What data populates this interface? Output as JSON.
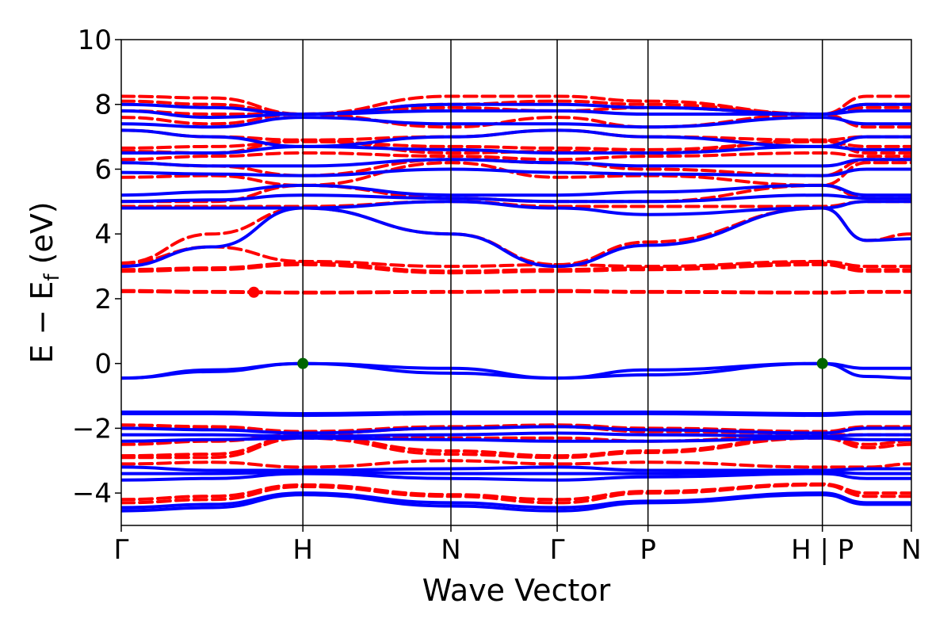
{
  "chart_data": {
    "type": "line",
    "title": "",
    "xlabel": "Wave Vector",
    "ylabel": [
      "E",
      " − E",
      "f",
      " (eV)"
    ],
    "ylim": [
      -5,
      10
    ],
    "yticks": [
      -4,
      -2,
      0,
      2,
      4,
      6,
      8,
      10
    ],
    "ytick_labels": [
      "−4",
      "−2",
      "0",
      "2",
      "4",
      "6",
      "8",
      "10"
    ],
    "x_kpath": [
      0,
      2.0,
      3.63,
      4.8,
      5.8,
      7.72,
      8.7
    ],
    "x_kpoint_labels": [
      "Γ",
      "H",
      "N",
      "Γ",
      "P",
      "H | P",
      "N"
    ],
    "path_breaks": [
      7.72
    ],
    "grid": false,
    "legend": "none",
    "series_styles": [
      {
        "key": "spin_up",
        "color": "#0000ff",
        "dash": "solid"
      },
      {
        "key": "spin_down",
        "color": "#ff0000",
        "dash": "dashed"
      }
    ],
    "bands": {
      "spin_down": [
        [
          -4.3,
          -4.2,
          -3.8,
          -4.1,
          -4.3,
          -4.0,
          -3.75,
          -4.1,
          -4.1
        ],
        [
          -4.2,
          -4.1,
          -3.75,
          -4.05,
          -4.2,
          -3.95,
          -3.72,
          -4.0,
          -4.0
        ],
        [
          -3.1,
          -3.05,
          -3.2,
          -3.0,
          -3.1,
          -3.05,
          -3.2,
          -3.2,
          -3.1
        ],
        [
          -2.9,
          -2.9,
          -2.3,
          -2.8,
          -2.9,
          -2.75,
          -2.3,
          -2.6,
          -2.5
        ],
        [
          -2.85,
          -2.8,
          -2.25,
          -2.7,
          -2.85,
          -2.7,
          -2.25,
          -2.5,
          -2.4
        ],
        [
          -2.5,
          -2.4,
          -2.2,
          -2.3,
          -2.3,
          -2.4,
          -2.2,
          -2.2,
          -2.2
        ],
        [
          -2.0,
          -2.0,
          -2.15,
          -2.0,
          -1.95,
          -2.1,
          -2.15,
          -2.0,
          -2.0
        ],
        [
          -1.9,
          -1.95,
          -2.1,
          -1.95,
          -1.9,
          -2.0,
          -2.1,
          -1.95,
          -1.95
        ],
        [
          2.22,
          2.2,
          2.18,
          2.2,
          2.22,
          2.2,
          2.18,
          2.2,
          2.2
        ],
        [
          2.25,
          2.22,
          2.2,
          2.22,
          2.25,
          2.22,
          2.2,
          2.22,
          2.22
        ],
        [
          2.85,
          2.9,
          3.05,
          2.8,
          2.85,
          2.9,
          3.05,
          2.85,
          2.85
        ],
        [
          2.9,
          2.95,
          3.1,
          2.85,
          2.9,
          2.95,
          3.1,
          2.9,
          2.9
        ],
        [
          3.1,
          3.6,
          3.15,
          3.0,
          3.05,
          3.0,
          3.15,
          3.0,
          3.0
        ],
        [
          3.1,
          4.0,
          4.8,
          4.0,
          3.05,
          3.75,
          4.8,
          3.8,
          4.0
        ],
        [
          4.85,
          4.85,
          4.85,
          5.0,
          4.85,
          4.85,
          4.85,
          5.0,
          5.0
        ],
        [
          5.0,
          5.0,
          5.5,
          5.1,
          5.0,
          5.0,
          5.5,
          5.1,
          5.1
        ],
        [
          5.75,
          5.8,
          5.5,
          6.2,
          5.75,
          5.8,
          5.5,
          6.2,
          6.2
        ],
        [
          6.2,
          6.1,
          5.8,
          6.3,
          6.2,
          6.0,
          5.8,
          6.3,
          6.3
        ],
        [
          6.3,
          6.4,
          6.5,
          6.4,
          6.3,
          6.4,
          6.5,
          6.4,
          6.4
        ],
        [
          6.55,
          6.5,
          6.9,
          6.5,
          6.55,
          6.5,
          6.9,
          6.5,
          6.5
        ],
        [
          6.65,
          6.7,
          6.85,
          6.7,
          6.65,
          6.6,
          6.85,
          6.7,
          6.7
        ],
        [
          7.2,
          7.0,
          6.9,
          7.0,
          7.2,
          7.0,
          6.9,
          7.0,
          7.0
        ],
        [
          7.6,
          7.4,
          7.7,
          7.3,
          7.6,
          7.3,
          7.7,
          7.3,
          7.3
        ],
        [
          7.8,
          7.7,
          7.7,
          7.9,
          7.8,
          7.9,
          7.7,
          7.9,
          7.9
        ],
        [
          8.1,
          8.0,
          7.7,
          8.0,
          8.1,
          8.0,
          7.7,
          8.0,
          8.0
        ],
        [
          8.25,
          8.2,
          7.7,
          8.25,
          8.25,
          8.1,
          7.7,
          8.25,
          8.25
        ]
      ],
      "spin_up": [
        [
          -4.55,
          -4.45,
          -4.05,
          -4.4,
          -4.55,
          -4.3,
          -4.05,
          -4.35,
          -4.35
        ],
        [
          -4.45,
          -4.35,
          -4.0,
          -4.3,
          -4.45,
          -4.25,
          -4.0,
          -4.3,
          -4.3
        ],
        [
          -3.6,
          -3.55,
          -3.4,
          -3.55,
          -3.6,
          -3.5,
          -3.4,
          -3.55,
          -3.55
        ],
        [
          -3.4,
          -3.4,
          -3.35,
          -3.4,
          -3.4,
          -3.4,
          -3.35,
          -3.4,
          -3.4
        ],
        [
          -3.2,
          -3.3,
          -3.3,
          -3.25,
          -3.2,
          -3.3,
          -3.3,
          -3.25,
          -3.25
        ],
        [
          -2.4,
          -2.35,
          -2.3,
          -2.35,
          -2.4,
          -2.4,
          -2.3,
          -2.35,
          -2.35
        ],
        [
          -2.2,
          -2.2,
          -2.25,
          -2.2,
          -2.15,
          -2.2,
          -2.25,
          -2.2,
          -2.2
        ],
        [
          -2.0,
          -2.05,
          -2.15,
          -2.0,
          -1.95,
          -2.05,
          -2.15,
          -2.0,
          -2.0
        ],
        [
          -1.5,
          -1.5,
          -1.55,
          -1.5,
          -1.5,
          -1.5,
          -1.55,
          -1.5,
          -1.5
        ],
        [
          -1.55,
          -1.55,
          -1.6,
          -1.55,
          -1.55,
          -1.55,
          -1.6,
          -1.55,
          -1.55
        ],
        [
          -0.45,
          -0.2,
          0.0,
          -0.15,
          -0.45,
          -0.2,
          0.0,
          -0.15,
          -0.15
        ],
        [
          -0.45,
          -0.25,
          0.0,
          -0.3,
          -0.45,
          -0.35,
          0.0,
          -0.4,
          -0.45
        ],
        [
          3.0,
          3.6,
          4.8,
          4.0,
          3.0,
          3.65,
          4.8,
          3.8,
          3.85
        ],
        [
          4.8,
          4.8,
          4.8,
          5.0,
          4.8,
          4.6,
          4.8,
          5.0,
          5.0
        ],
        [
          5.0,
          5.05,
          5.2,
          5.1,
          5.0,
          5.0,
          5.2,
          5.1,
          5.1
        ],
        [
          5.2,
          5.3,
          5.5,
          5.2,
          5.2,
          5.3,
          5.5,
          5.2,
          5.2
        ],
        [
          5.9,
          5.85,
          5.8,
          6.0,
          5.9,
          5.85,
          5.8,
          6.0,
          6.0
        ],
        [
          6.2,
          6.1,
          6.1,
          6.3,
          6.2,
          6.1,
          6.1,
          6.3,
          6.3
        ],
        [
          6.5,
          6.5,
          6.7,
          6.6,
          6.5,
          6.5,
          6.7,
          6.6,
          6.6
        ],
        [
          7.2,
          7.0,
          6.7,
          7.0,
          7.2,
          7.0,
          6.7,
          7.0,
          7.0
        ],
        [
          7.4,
          7.3,
          7.6,
          7.4,
          7.4,
          7.3,
          7.6,
          7.4,
          7.4
        ],
        [
          7.8,
          7.6,
          7.7,
          7.8,
          7.8,
          7.7,
          7.7,
          7.8,
          7.8
        ],
        [
          8.0,
          7.9,
          7.7,
          8.0,
          8.0,
          7.9,
          7.7,
          8.0,
          8.0
        ]
      ]
    },
    "markers": [
      {
        "x": 1.46,
        "y": 2.2,
        "color": "#ff0000"
      },
      {
        "x": 2.0,
        "y": 0.0,
        "color": "#006400"
      },
      {
        "x": 7.72,
        "y": 0.0,
        "color": "#006400"
      }
    ]
  }
}
